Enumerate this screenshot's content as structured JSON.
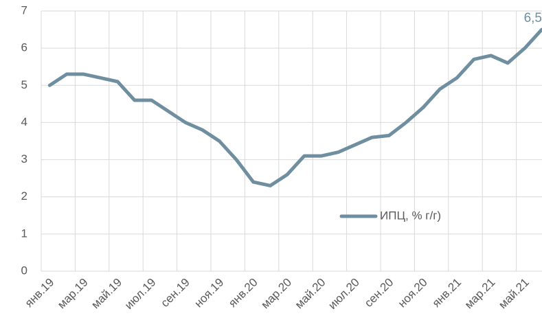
{
  "chart_data": {
    "type": "line",
    "categories": [
      "янв.19",
      null,
      "мар.19",
      null,
      "май.19",
      null,
      "июл.19",
      null,
      "сен.19",
      null,
      "ноя.19",
      null,
      "янв.20",
      null,
      "мар.20",
      null,
      "май.20",
      null,
      "июл.20",
      null,
      "сен.20",
      null,
      "ноя.20",
      null,
      "янв.21",
      null,
      "мар.21",
      null,
      "май.21",
      null
    ],
    "series": [
      {
        "name": "ИПЦ, % г/г)",
        "color": "#6f8fa1",
        "values": [
          5.0,
          5.3,
          5.3,
          5.2,
          5.1,
          4.6,
          4.6,
          4.3,
          4.0,
          3.8,
          3.5,
          3.0,
          2.4,
          2.3,
          2.6,
          3.1,
          3.1,
          3.2,
          3.4,
          3.6,
          3.65,
          4.0,
          4.4,
          4.9,
          5.2,
          5.7,
          5.8,
          5.6,
          6.0,
          6.5
        ],
        "value_labels": [
          null,
          null,
          null,
          null,
          null,
          null,
          null,
          null,
          null,
          null,
          null,
          null,
          null,
          null,
          null,
          null,
          null,
          null,
          null,
          null,
          null,
          null,
          null,
          null,
          null,
          null,
          null,
          null,
          null,
          "6,5"
        ]
      }
    ],
    "ylim": [
      0,
      7
    ],
    "yticks": [
      0,
      1,
      2,
      3,
      4,
      5,
      6,
      7
    ],
    "grid": true,
    "legend": "right"
  }
}
